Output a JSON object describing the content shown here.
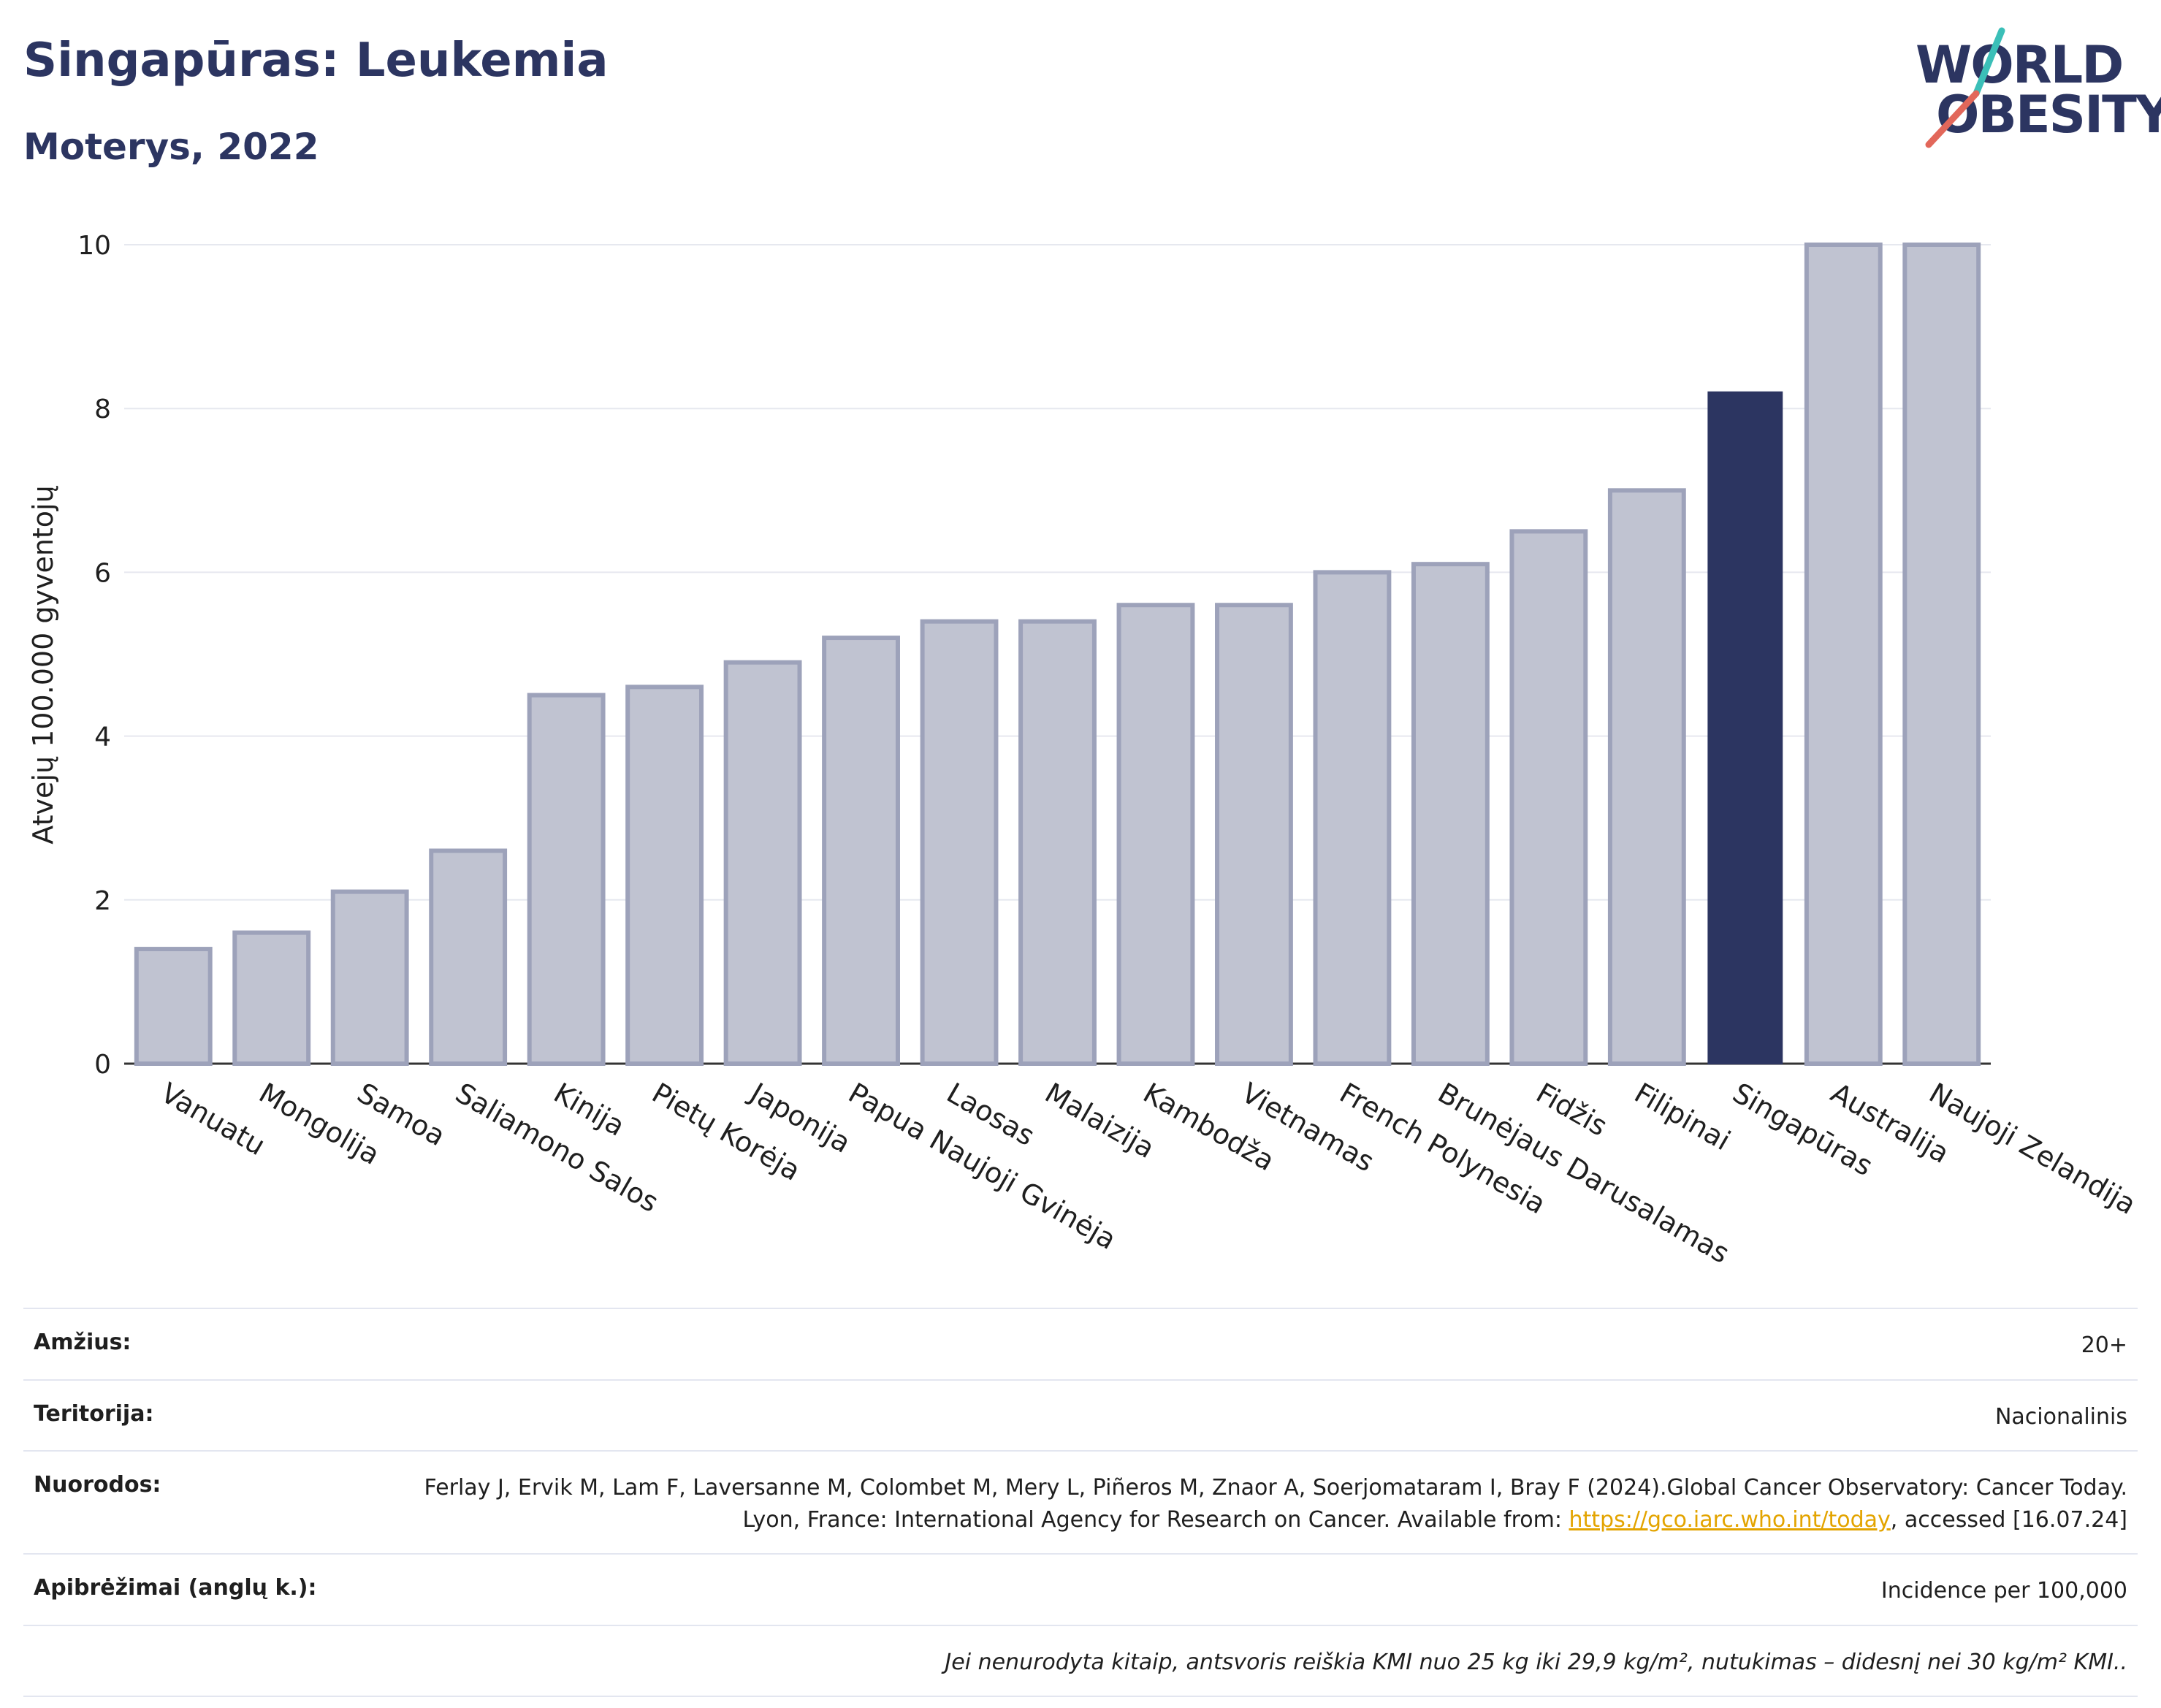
{
  "header": {
    "title": "Singapūras: Leukemia",
    "subtitle": "Moterys, 2022"
  },
  "logo": {
    "line1": "WORLD",
    "line2": "OBESITY",
    "accent_teal": "#3bbfb8",
    "accent_red": "#e2675a"
  },
  "chart_data": {
    "type": "bar",
    "ylabel": "Atvejų 100.000 gyventojų",
    "ylim": [
      0,
      10
    ],
    "yticks": [
      0,
      2,
      4,
      6,
      8,
      10
    ],
    "grid": true,
    "categories": [
      "Vanuatu",
      "Mongolija",
      "Samoa",
      "Saliamono Salos",
      "Kinija",
      "Pietų Korėja",
      "Japonija",
      "Papua Naujoji Gvinėja",
      "Laosas",
      "Malaizija",
      "Kambodža",
      "Vietnamas",
      "French Polynesia",
      "Brunėjaus Darusalamas",
      "Fidžis",
      "Filipinai",
      "Singapūras",
      "Australija",
      "Naujoji Zelandija"
    ],
    "values": [
      1.4,
      1.6,
      2.1,
      2.6,
      4.5,
      4.6,
      4.9,
      5.2,
      5.4,
      5.4,
      5.6,
      5.6,
      6.0,
      6.1,
      6.5,
      7.0,
      8.2,
      10.0,
      10.0
    ],
    "highlight": "Singapūras",
    "colors": {
      "bar": "#c0c3d1",
      "bar_border": "#9da2ba",
      "highlight": "#2c3561"
    }
  },
  "info": {
    "age_label": "Amžius:",
    "age_value": "20+",
    "territory_label": "Teritorija:",
    "territory_value": "Nacionalinis",
    "refs_label": "Nuorodos:",
    "refs_text": "Ferlay J, Ervik M, Lam F, Laversanne M, Colombet M, Mery L, Piñeros M, Znaor A, Soerjomataram I, Bray F (2024).Global Cancer Observatory: Cancer Today. Lyon, France: International Agency for Research on Cancer. Available from: ",
    "refs_link": "https://gco.iarc.who.int/today",
    "refs_tail": ", accessed [16.07.24]",
    "defs_label": "Apibrėžimai (anglų k.):",
    "defs_value": "Incidence per 100,000",
    "note": "Jei nenurodyta kitaip, antsvoris reiškia KMI nuo 25 kg iki 29,9 kg/m², nutukimas – didesnį nei 30 kg/m² KMI.."
  }
}
